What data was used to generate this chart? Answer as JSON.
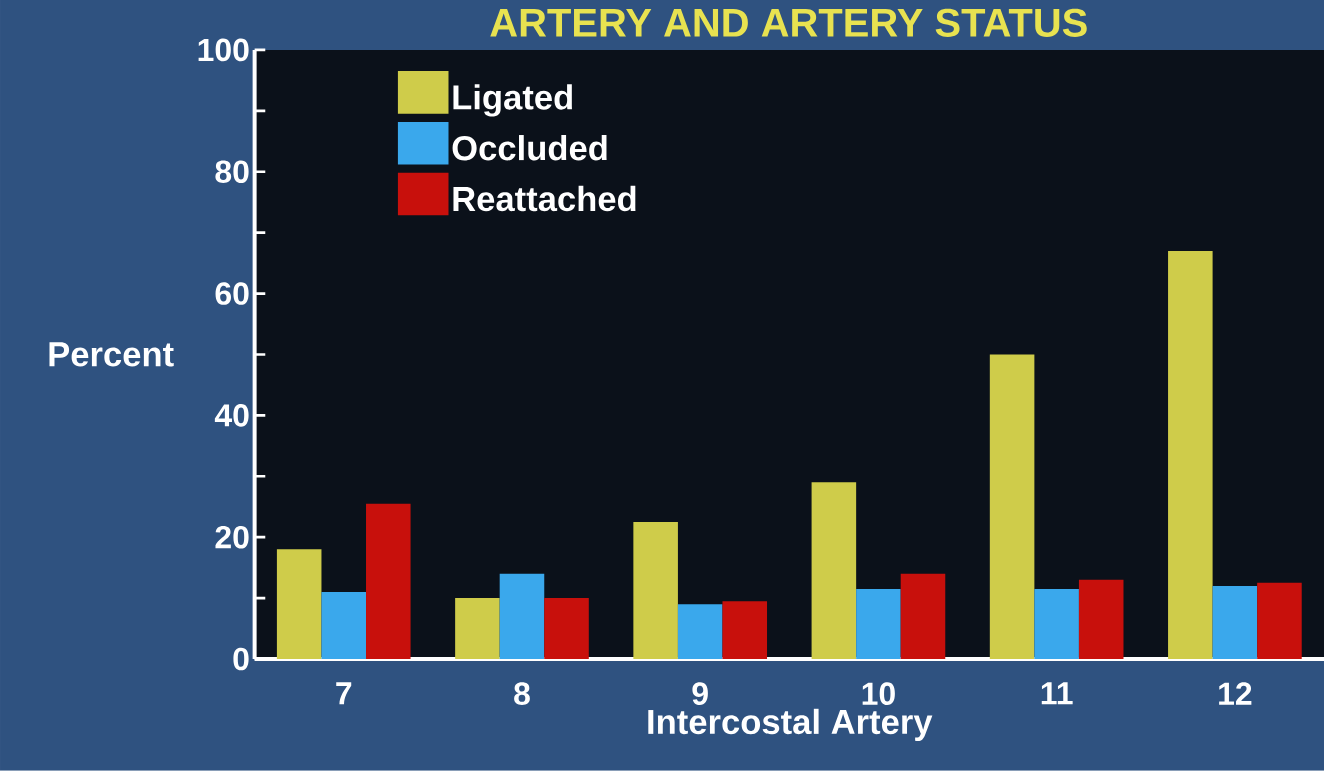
{
  "chart_data": {
    "type": "bar",
    "title": "ARTERY AND ARTERY STATUS",
    "xlabel": "Intercostal Artery",
    "ylabel": "Percent",
    "categories": [
      "7",
      "8",
      "9",
      "10",
      "11",
      "12"
    ],
    "series": [
      {
        "name": "Ligated",
        "color": "#cfcc4a",
        "values": [
          18,
          10,
          22.5,
          29,
          50,
          67
        ]
      },
      {
        "name": "Occluded",
        "color": "#3aa8ec",
        "values": [
          11,
          14,
          9,
          11.5,
          11.5,
          12
        ]
      },
      {
        "name": "Reattached",
        "color": "#c8100c",
        "values": [
          25.5,
          10,
          9.5,
          14,
          13,
          12.5
        ]
      }
    ],
    "ylim": [
      0,
      100
    ],
    "yticks": [
      0,
      20,
      40,
      60,
      80,
      100
    ],
    "grid": false,
    "legend": "top left"
  }
}
